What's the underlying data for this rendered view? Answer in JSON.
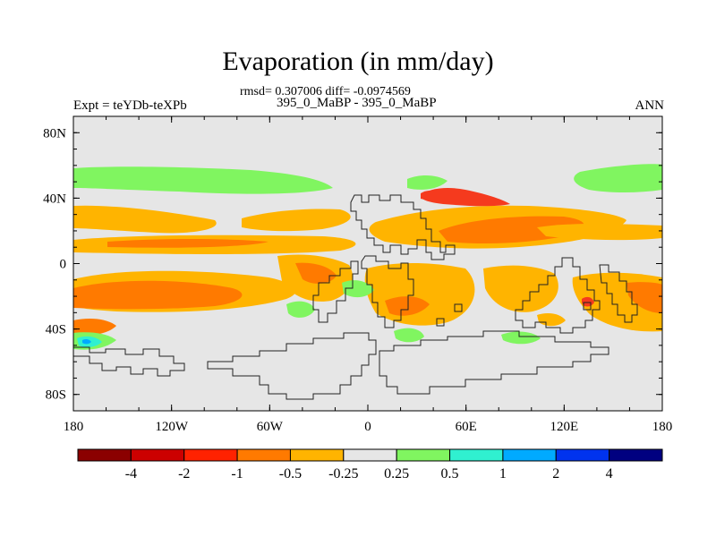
{
  "title": "Evaporation (in mm/day)",
  "stats_line": "rmsd= 0.307006 diff= -0.0974569",
  "center_subtitle": "395_0_MaBP - 395_0_MaBP",
  "left_string": "Expt = teYDb-teXPb",
  "right_string": "ANN",
  "map": {
    "lon_ticks": [
      "180",
      "120W",
      "60W",
      "0",
      "60E",
      "120E",
      "180"
    ],
    "lat_ticks": [
      "80N",
      "40N",
      "0",
      "40S",
      "80S"
    ]
  },
  "colorbar": {
    "labels": [
      "-4",
      "-2",
      "-1",
      "-0.5",
      "-0.25",
      "0.25",
      "0.5",
      "1",
      "2",
      "4"
    ],
    "colors": [
      "#8b0000",
      "#cc0000",
      "#ff2200",
      "#ff7a00",
      "#ffb400",
      "#e6e6e6",
      "#80f560",
      "#30f0d0",
      "#00aaff",
      "#0033ee",
      "#000080"
    ]
  },
  "colors": {
    "background": "#e6e6e6",
    "red": "#f53a1e",
    "orange": "#ff7a00",
    "yellow": "#ffb400",
    "green": "#80f560",
    "cyan": "#30f0d0",
    "blue": "#00aaff"
  }
}
